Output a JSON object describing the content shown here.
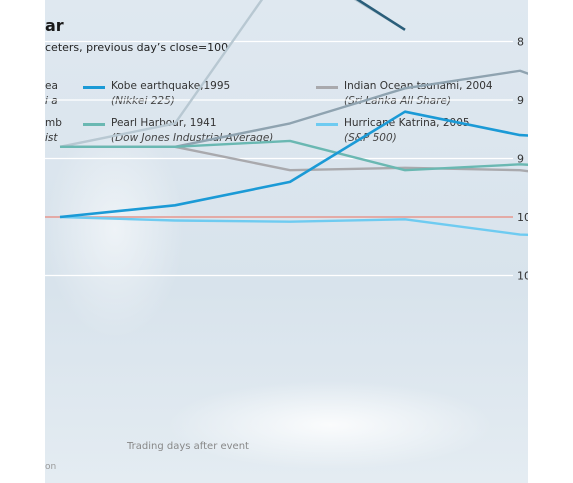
{
  "chart_data": {
    "type": "line",
    "title": "ar",
    "subtitle": "ceters, previous day’s close=100",
    "xlabel": "Trading days after event",
    "ylabel": "",
    "y_ticks": [
      "10",
      "10",
      "9",
      "9",
      "8"
    ],
    "truncated_legend": [
      "ea",
      "i a",
      "mb",
      "ist"
    ],
    "source_fragment": "on",
    "grid": true,
    "series": [
      {
        "name": "Kobe earthquake,1995",
        "index": "(Nikkei 225)",
        "color": "#1b9ad6",
        "points": [
          [
            -1,
            100
          ],
          [
            0,
            99
          ],
          [
            1,
            97
          ],
          [
            2,
            91
          ],
          [
            3,
            93
          ],
          [
            4,
            93.5
          ]
        ]
      },
      {
        "name": "Pearl Harbour, 1941",
        "index": "(Dow Jones Industrial Average)",
        "color": "#6ab8b2",
        "points": [
          [
            -1,
            94
          ],
          [
            0,
            94
          ],
          [
            1,
            93.5
          ],
          [
            2,
            96
          ],
          [
            3,
            95.5
          ],
          [
            4,
            96
          ]
        ]
      },
      {
        "name": "Indian Ocean tsunami, 2004",
        "index": "(Sri Lanka All Share)",
        "color": "#a9a9ad",
        "points": [
          [
            -1,
            94
          ],
          [
            0,
            94
          ],
          [
            1,
            96
          ],
          [
            2,
            95.8
          ],
          [
            3,
            96
          ],
          [
            4,
            97.2
          ]
        ]
      },
      {
        "name": "Hurricane Katrina, 2005",
        "index": "(S&P 500)",
        "color": "#6ecbf1",
        "points": [
          [
            -1,
            100
          ],
          [
            0,
            100.3
          ],
          [
            1,
            100.4
          ],
          [
            2,
            100.2
          ],
          [
            3,
            101.5
          ],
          [
            4,
            101.8
          ]
        ]
      },
      {
        "name": "",
        "index": "",
        "color": "#8fa3b0",
        "points": [
          [
            -1,
            94
          ],
          [
            0,
            94
          ],
          [
            1,
            92
          ],
          [
            2,
            89
          ],
          [
            3,
            87.5
          ],
          [
            4,
            91
          ]
        ]
      },
      {
        "name": "",
        "index": "",
        "color": "#b8c8d2",
        "points": [
          [
            -1,
            94
          ],
          [
            0,
            92
          ],
          [
            1,
            78
          ],
          [
            2,
            84
          ]
        ]
      }
    ],
    "reference_line": {
      "value": 100,
      "color": "#e3a19b"
    },
    "notes": []
  },
  "colors": {
    "kobe": "#1b9ad6",
    "pearl": "#6ab8b2",
    "tsunami": "#a9a9ad",
    "katrina": "#6ecbf1",
    "partial_dark": "#2a5e7a",
    "partial_light": "#b8c8d2"
  }
}
